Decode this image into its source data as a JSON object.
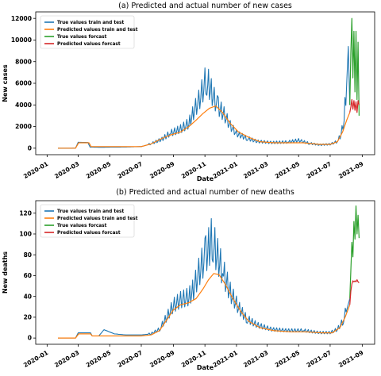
{
  "colors": {
    "true_train_test": "#1f77b4",
    "pred_train_test": "#ff7f0e",
    "true_forecast": "#2ca02c",
    "pred_forecast": "#d62728",
    "axes": "#000000",
    "background": "#ffffff"
  },
  "chart_data": [
    {
      "type": "line",
      "title": "(a) Predicted and actual number of new cases",
      "xlabel": "Date",
      "ylabel": "New cases",
      "x_ticks": [
        "2020-01",
        "2020-03",
        "2020-05",
        "2020-07",
        "2020-09",
        "2020-11",
        "2021-01",
        "2021-03",
        "2021-05",
        "2021-07",
        "2021-09"
      ],
      "y_ticks": [
        0,
        2000,
        4000,
        6000,
        8000,
        10000,
        12000
      ],
      "xlim": [
        "2019-12-10",
        "2021-09-25"
      ],
      "ylim": [
        -600,
        12600
      ],
      "grid": false,
      "legend_position": "top-left",
      "series": [
        {
          "name": "True values train and test",
          "key": "true_train_test",
          "points": [
            [
              "2020-01-22",
              0
            ],
            [
              "2020-02-10",
              0
            ],
            [
              "2020-02-25",
              10
            ],
            [
              "2020-03-01",
              550
            ],
            [
              "2020-03-20",
              520
            ],
            [
              "2020-03-24",
              100
            ],
            [
              "2020-04-15",
              80
            ],
            [
              "2020-05-10",
              100
            ],
            [
              "2020-06-10",
              120
            ],
            [
              "2020-07-01",
              150
            ],
            [
              "2020-07-20",
              400
            ],
            [
              "2020-08-10",
              800
            ],
            [
              "2020-08-25",
              1300
            ],
            [
              "2020-09-15",
              1700
            ],
            [
              "2020-10-01",
              2200
            ],
            [
              "2020-10-10",
              3200
            ],
            [
              "2020-10-20",
              4200
            ],
            [
              "2020-10-28",
              5200
            ],
            [
              "2020-11-03",
              6100
            ],
            [
              "2020-11-08",
              5700
            ],
            [
              "2020-11-15",
              4800
            ],
            [
              "2020-11-25",
              3800
            ],
            [
              "2020-12-08",
              3000
            ],
            [
              "2020-12-20",
              2000
            ],
            [
              "2021-01-01",
              1300
            ],
            [
              "2021-01-20",
              900
            ],
            [
              "2021-02-10",
              600
            ],
            [
              "2021-03-10",
              500
            ],
            [
              "2021-04-10",
              550
            ],
            [
              "2021-05-01",
              700
            ],
            [
              "2021-05-20",
              450
            ],
            [
              "2021-06-10",
              300
            ],
            [
              "2021-07-01",
              350
            ],
            [
              "2021-07-15",
              600
            ],
            [
              "2021-07-22",
              1200
            ],
            [
              "2021-07-28",
              2500
            ],
            [
              "2021-08-02",
              6000
            ],
            [
              "2021-08-05",
              9400
            ],
            [
              "2021-08-08",
              4000
            ]
          ]
        },
        {
          "name": "Predicted values train and test",
          "key": "pred_train_test",
          "points": [
            [
              "2020-01-22",
              0
            ],
            [
              "2020-02-25",
              0
            ],
            [
              "2020-03-02",
              500
            ],
            [
              "2020-03-22",
              500
            ],
            [
              "2020-03-26",
              150
            ],
            [
              "2020-05-01",
              150
            ],
            [
              "2020-07-01",
              150
            ],
            [
              "2020-07-20",
              400
            ],
            [
              "2020-08-10",
              900
            ],
            [
              "2020-08-25",
              1200
            ],
            [
              "2020-09-15",
              1500
            ],
            [
              "2020-10-01",
              2000
            ],
            [
              "2020-10-15",
              2600
            ],
            [
              "2020-10-28",
              3200
            ],
            [
              "2020-11-10",
              3700
            ],
            [
              "2020-11-22",
              3900
            ],
            [
              "2020-12-05",
              3300
            ],
            [
              "2020-12-20",
              2300
            ],
            [
              "2021-01-05",
              1500
            ],
            [
              "2021-01-25",
              1000
            ],
            [
              "2021-02-15",
              600
            ],
            [
              "2021-03-15",
              500
            ],
            [
              "2021-04-15",
              500
            ],
            [
              "2021-05-10",
              500
            ],
            [
              "2021-06-10",
              350
            ],
            [
              "2021-07-01",
              350
            ],
            [
              "2021-07-15",
              600
            ],
            [
              "2021-07-25",
              1500
            ],
            [
              "2021-08-02",
              2600
            ],
            [
              "2021-08-08",
              3300
            ]
          ]
        },
        {
          "name": "True values forcast",
          "key": "true_forecast",
          "points": [
            [
              "2021-08-08",
              4000
            ],
            [
              "2021-08-10",
              8800
            ],
            [
              "2021-08-12",
              12000
            ],
            [
              "2021-08-14",
              6500
            ],
            [
              "2021-08-16",
              10800
            ],
            [
              "2021-08-18",
              5200
            ],
            [
              "2021-08-20",
              10800
            ],
            [
              "2021-08-22",
              4500
            ],
            [
              "2021-08-24",
              9800
            ],
            [
              "2021-08-26",
              3000
            ]
          ]
        },
        {
          "name": "Predicted values forcast",
          "key": "pred_forecast",
          "points": [
            [
              "2021-08-08",
              3300
            ],
            [
              "2021-08-10",
              3800
            ],
            [
              "2021-08-12",
              4500
            ],
            [
              "2021-08-14",
              3600
            ],
            [
              "2021-08-16",
              4400
            ],
            [
              "2021-08-18",
              3500
            ],
            [
              "2021-08-20",
              4300
            ],
            [
              "2021-08-22",
              3300
            ],
            [
              "2021-08-24",
              4400
            ],
            [
              "2021-08-26",
              4000
            ]
          ]
        }
      ]
    },
    {
      "type": "line",
      "title": "(b) Predicted and actual number of new deaths",
      "xlabel": "Date",
      "ylabel": "New deaths",
      "x_ticks": [
        "2020-01",
        "2020-03",
        "2020-05",
        "2020-07",
        "2020-09",
        "2020-11",
        "2021-01",
        "2021-03",
        "2021-05",
        "2021-07",
        "2021-09"
      ],
      "y_ticks": [
        0,
        20,
        40,
        60,
        80,
        100,
        120
      ],
      "xlim": [
        "2019-12-10",
        "2021-09-25"
      ],
      "ylim": [
        -6,
        132
      ],
      "grid": false,
      "legend_position": "top-left",
      "series": [
        {
          "name": "True values train and test",
          "key": "true_train_test",
          "points": [
            [
              "2020-01-22",
              0
            ],
            [
              "2020-02-10",
              0
            ],
            [
              "2020-02-25",
              0
            ],
            [
              "2020-03-01",
              5
            ],
            [
              "2020-03-25",
              5
            ],
            [
              "2020-03-28",
              2
            ],
            [
              "2020-04-10",
              2
            ],
            [
              "2020-04-20",
              8
            ],
            [
              "2020-05-10",
              4
            ],
            [
              "2020-06-01",
              3
            ],
            [
              "2020-07-01",
              3
            ],
            [
              "2020-07-20",
              4
            ],
            [
              "2020-08-05",
              8
            ],
            [
              "2020-08-20",
              20
            ],
            [
              "2020-09-01",
              30
            ],
            [
              "2020-09-15",
              35
            ],
            [
              "2020-10-01",
              38
            ],
            [
              "2020-10-10",
              45
            ],
            [
              "2020-10-20",
              60
            ],
            [
              "2020-11-01",
              75
            ],
            [
              "2020-11-10",
              85
            ],
            [
              "2020-11-15",
              92
            ],
            [
              "2020-11-22",
              80
            ],
            [
              "2020-12-05",
              62
            ],
            [
              "2020-12-20",
              42
            ],
            [
              "2021-01-05",
              28
            ],
            [
              "2021-01-20",
              18
            ],
            [
              "2021-02-10",
              12
            ],
            [
              "2021-03-10",
              8
            ],
            [
              "2021-04-10",
              7
            ],
            [
              "2021-05-10",
              7
            ],
            [
              "2021-06-10",
              5
            ],
            [
              "2021-07-01",
              5
            ],
            [
              "2021-07-15",
              8
            ],
            [
              "2021-07-25",
              15
            ],
            [
              "2021-08-01",
              25
            ],
            [
              "2021-08-08",
              38
            ]
          ]
        },
        {
          "name": "Predicted values train and test",
          "key": "pred_train_test",
          "points": [
            [
              "2020-01-22",
              0
            ],
            [
              "2020-02-25",
              0
            ],
            [
              "2020-03-02",
              4
            ],
            [
              "2020-03-25",
              4
            ],
            [
              "2020-03-28",
              2
            ],
            [
              "2020-05-01",
              2
            ],
            [
              "2020-07-01",
              2
            ],
            [
              "2020-07-20",
              3
            ],
            [
              "2020-08-05",
              7
            ],
            [
              "2020-08-20",
              18
            ],
            [
              "2020-09-01",
              27
            ],
            [
              "2020-09-15",
              32
            ],
            [
              "2020-10-01",
              34
            ],
            [
              "2020-10-15",
              38
            ],
            [
              "2020-10-28",
              47
            ],
            [
              "2020-11-08",
              56
            ],
            [
              "2020-11-18",
              62
            ],
            [
              "2020-11-28",
              61
            ],
            [
              "2020-12-10",
              52
            ],
            [
              "2020-12-25",
              38
            ],
            [
              "2021-01-10",
              25
            ],
            [
              "2021-01-25",
              16
            ],
            [
              "2021-02-15",
              10
            ],
            [
              "2021-03-15",
              7
            ],
            [
              "2021-04-15",
              6
            ],
            [
              "2021-05-15",
              6
            ],
            [
              "2021-06-15",
              5
            ],
            [
              "2021-07-05",
              5
            ],
            [
              "2021-07-20",
              10
            ],
            [
              "2021-07-30",
              20
            ],
            [
              "2021-08-08",
              32
            ]
          ]
        },
        {
          "name": "True values forcast",
          "key": "true_forecast",
          "points": [
            [
              "2021-08-08",
              38
            ],
            [
              "2021-08-10",
              65
            ],
            [
              "2021-08-12",
              92
            ],
            [
              "2021-08-14",
              78
            ],
            [
              "2021-08-16",
              112
            ],
            [
              "2021-08-18",
              95
            ],
            [
              "2021-08-20",
              127
            ],
            [
              "2021-08-22",
              100
            ],
            [
              "2021-08-24",
              118
            ],
            [
              "2021-08-26",
              96
            ]
          ]
        },
        {
          "name": "Predicted values forcast",
          "key": "pred_forecast",
          "points": [
            [
              "2021-08-08",
              32
            ],
            [
              "2021-08-10",
              45
            ],
            [
              "2021-08-12",
              52
            ],
            [
              "2021-08-14",
              55
            ],
            [
              "2021-08-16",
              54
            ],
            [
              "2021-08-18",
              55
            ],
            [
              "2021-08-20",
              54
            ],
            [
              "2021-08-22",
              56
            ],
            [
              "2021-08-24",
              54
            ],
            [
              "2021-08-26",
              53
            ]
          ]
        }
      ]
    }
  ]
}
